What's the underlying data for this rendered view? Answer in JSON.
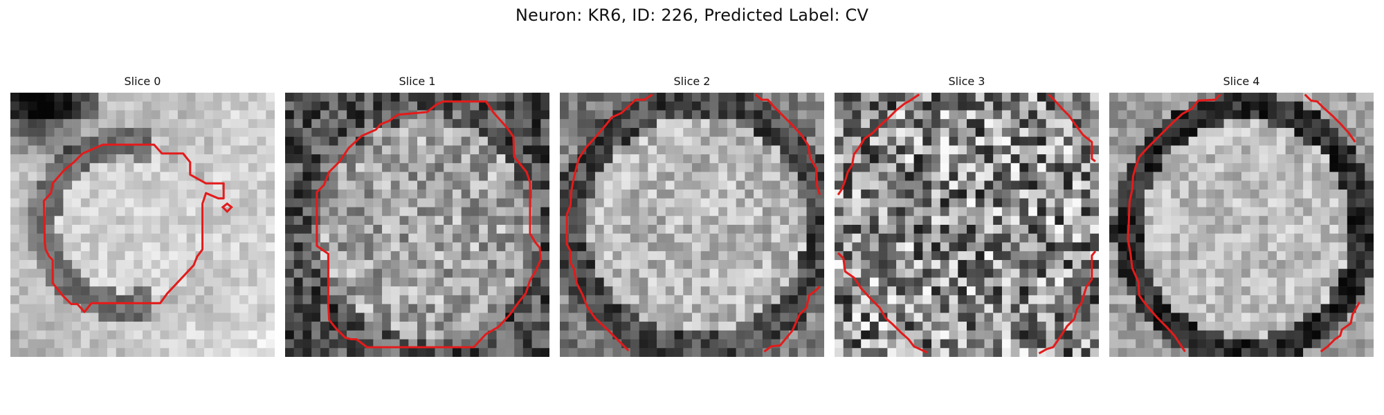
{
  "figure": {
    "suptitle": "Neuron: KR6, ID: 226, Predicted Label: CV"
  },
  "panels": [
    {
      "title": "Slice 0",
      "id": "slice-0"
    },
    {
      "title": "Slice 1",
      "id": "slice-1"
    },
    {
      "title": "Slice 2",
      "id": "slice-2"
    },
    {
      "title": "Slice 3",
      "id": "slice-3"
    },
    {
      "title": "Slice 4",
      "id": "slice-4"
    }
  ],
  "colors": {
    "contour": "#e31b1b",
    "background": "#ffffff"
  }
}
